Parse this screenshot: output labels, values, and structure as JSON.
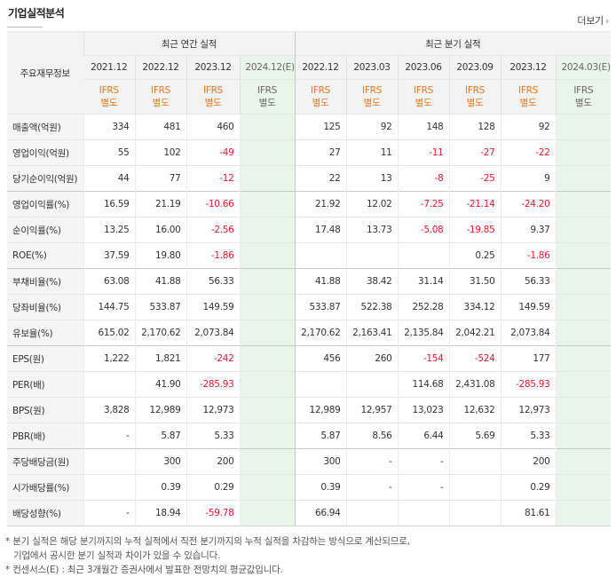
{
  "header": {
    "title": "기업실적분석",
    "more_label": "더보기"
  },
  "table": {
    "corner_label": "주요재무정보",
    "group_annual": "최근 연간 실적",
    "group_quarter": "최근 분기 실적",
    "annual_periods": [
      "2021.12",
      "2022.12",
      "2023.12",
      "2024.12(E)"
    ],
    "quarter_periods": [
      "2022.12",
      "2023.03",
      "2023.06",
      "2023.09",
      "2023.12",
      "2024.03(E)"
    ],
    "basis_line1": "IFRS",
    "basis_line2": "별도",
    "rows": [
      {
        "label": "매출액(억원)",
        "annual": [
          "334",
          "481",
          "460",
          ""
        ],
        "quarter": [
          "125",
          "92",
          "148",
          "128",
          "92",
          ""
        ]
      },
      {
        "label": "영업이익(억원)",
        "annual": [
          "55",
          "102",
          "-49",
          ""
        ],
        "quarter": [
          "27",
          "11",
          "-11",
          "-27",
          "-22",
          ""
        ]
      },
      {
        "label": "당기순이익(억원)",
        "annual": [
          "44",
          "77",
          "-12",
          ""
        ],
        "quarter": [
          "22",
          "13",
          "-8",
          "-25",
          "9",
          ""
        ]
      },
      {
        "label": "영업이익률(%)",
        "annual": [
          "16.59",
          "21.19",
          "-10.66",
          ""
        ],
        "quarter": [
          "21.92",
          "12.02",
          "-7.25",
          "-21.14",
          "-24.20",
          ""
        ]
      },
      {
        "label": "순이익률(%)",
        "annual": [
          "13.25",
          "16.00",
          "-2.56",
          ""
        ],
        "quarter": [
          "17.48",
          "13.73",
          "-5.08",
          "-19.85",
          "9.37",
          ""
        ]
      },
      {
        "label": "ROE(%)",
        "annual": [
          "37.59",
          "19.80",
          "-1.86",
          ""
        ],
        "quarter": [
          "",
          "",
          "",
          "0.25",
          "-1.86",
          ""
        ]
      },
      {
        "label": "부채비율(%)",
        "annual": [
          "63.08",
          "41.88",
          "56.33",
          ""
        ],
        "quarter": [
          "41.88",
          "38.42",
          "31.14",
          "31.50",
          "56.33",
          ""
        ]
      },
      {
        "label": "당좌비율(%)",
        "annual": [
          "144.75",
          "533.87",
          "149.59",
          ""
        ],
        "quarter": [
          "533.87",
          "522.38",
          "252.28",
          "334.12",
          "149.59",
          ""
        ]
      },
      {
        "label": "유보율(%)",
        "annual": [
          "615.02",
          "2,170.62",
          "2,073.84",
          ""
        ],
        "quarter": [
          "2,170.62",
          "2,163.41",
          "2,135.84",
          "2,042.21",
          "2,073.84",
          ""
        ]
      },
      {
        "label": "EPS(원)",
        "annual": [
          "1,222",
          "1,821",
          "-242",
          ""
        ],
        "quarter": [
          "456",
          "260",
          "-154",
          "-524",
          "177",
          ""
        ]
      },
      {
        "label": "PER(배)",
        "annual": [
          "",
          "41.90",
          "-285.93",
          ""
        ],
        "quarter": [
          "",
          "",
          "114.68",
          "2,431.08",
          "-285.93",
          ""
        ]
      },
      {
        "label": "BPS(원)",
        "annual": [
          "3,828",
          "12,989",
          "12,973",
          ""
        ],
        "quarter": [
          "12,989",
          "12,957",
          "13,023",
          "12,632",
          "12,973",
          ""
        ]
      },
      {
        "label": "PBR(배)",
        "annual": [
          "-",
          "5.87",
          "5.33",
          ""
        ],
        "quarter": [
          "5.87",
          "8.56",
          "6.44",
          "5.69",
          "5.33",
          ""
        ]
      },
      {
        "label": "주당배당금(원)",
        "annual": [
          "",
          "300",
          "200",
          ""
        ],
        "quarter": [
          "300",
          "-",
          "-",
          "",
          "200",
          ""
        ]
      },
      {
        "label": "시가배당률(%)",
        "annual": [
          "",
          "0.39",
          "0.29",
          ""
        ],
        "quarter": [
          "0.39",
          "-",
          "-",
          "",
          "0.29",
          ""
        ]
      },
      {
        "label": "배당성향(%)",
        "annual": [
          "-",
          "18.94",
          "-59.78",
          ""
        ],
        "quarter": [
          "66.94",
          "",
          "",
          "",
          "81.61",
          ""
        ]
      }
    ]
  },
  "notes": {
    "line1": "* 분기 실적은 해당 분기까지의 누적 실적에서 직전 분기까지의 누적 실적을 차감하는 방식으로 계산되므로,",
    "line2": "기업에서 공시한 분기 실적과 차이가 있을 수 있습니다.",
    "line3": "* 컨센서스(E) : 최근 3개월간 증권사에서 발표한 전망치의 평균값입니다."
  },
  "colors": {
    "negative": "#e8192c",
    "basis": "#e87722",
    "estimate_bg": "#e9f5e9"
  }
}
